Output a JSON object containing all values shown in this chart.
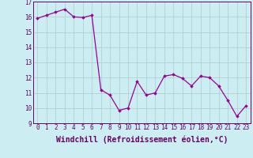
{
  "x": [
    0,
    1,
    2,
    3,
    4,
    5,
    6,
    7,
    8,
    9,
    10,
    11,
    12,
    13,
    14,
    15,
    16,
    17,
    18,
    19,
    20,
    21,
    22,
    23
  ],
  "y": [
    15.9,
    16.1,
    16.3,
    16.5,
    16.0,
    15.95,
    16.1,
    11.2,
    10.85,
    9.85,
    10.0,
    11.75,
    10.85,
    11.0,
    12.1,
    12.2,
    11.95,
    11.45,
    12.1,
    12.0,
    11.45,
    10.5,
    9.45,
    10.15
  ],
  "ylim": [
    9,
    17
  ],
  "xlim": [
    -0.5,
    23.5
  ],
  "yticks": [
    9,
    10,
    11,
    12,
    13,
    14,
    15,
    16,
    17
  ],
  "xticks": [
    0,
    1,
    2,
    3,
    4,
    5,
    6,
    7,
    8,
    9,
    10,
    11,
    12,
    13,
    14,
    15,
    16,
    17,
    18,
    19,
    20,
    21,
    22,
    23
  ],
  "xlabel": "Windchill (Refroidissement éolien,°C)",
  "line_color": "#990099",
  "marker": "D",
  "marker_size": 1.8,
  "bg_color": "#cceef2",
  "grid_color": "#aacccc",
  "font_color": "#660066",
  "tick_fontsize": 5.5,
  "xlabel_fontsize": 7.0
}
